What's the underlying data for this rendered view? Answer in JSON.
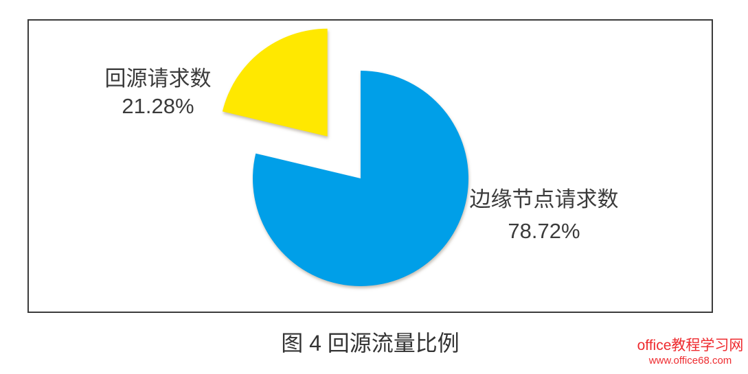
{
  "page": {
    "caption": "图 4  回源流量比例"
  },
  "chart_data": {
    "type": "pie",
    "title": "图 4 回源流量比例",
    "start_angle_deg": 0,
    "direction": "clockwise",
    "legend": "none",
    "data_labels": "category-name-and-percent",
    "slices": [
      {
        "label": "边缘节点请求数",
        "value": 78.72,
        "value_label": "78.72%",
        "color": "#009FE8",
        "exploded": false,
        "label_position": "right"
      },
      {
        "label": "回源请求数",
        "value": 21.28,
        "value_label": "21.28%",
        "color": "#FFE800",
        "exploded": true,
        "label_position": "upper-left"
      }
    ]
  },
  "watermark": {
    "site": "office教程学习网",
    "url": "www.office68.com",
    "color": "#EE2B2F"
  }
}
